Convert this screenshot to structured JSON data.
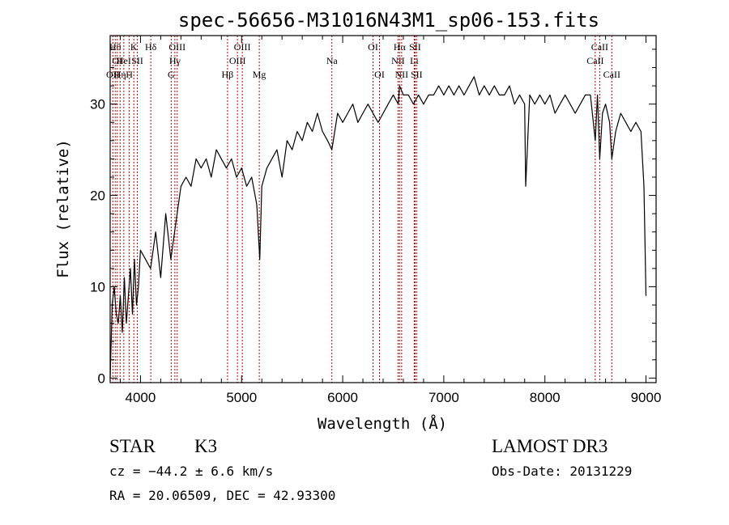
{
  "chart_data": {
    "type": "line",
    "title": "spec-56656-M31016N43M1_sp06-153.fits",
    "xlabel": "Wavelength (Å)",
    "ylabel": "Flux (relative)",
    "xlim": [
      3700,
      9100
    ],
    "ylim": [
      -0.5,
      37.5
    ],
    "xticks": [
      4000,
      5000,
      6000,
      7000,
      8000,
      9000
    ],
    "yticks": [
      0,
      10,
      20,
      30
    ],
    "series": [
      {
        "name": "flux",
        "x": [
          3700,
          3720,
          3740,
          3760,
          3780,
          3800,
          3820,
          3840,
          3860,
          3880,
          3900,
          3920,
          3940,
          3960,
          3980,
          4000,
          4050,
          4100,
          4150,
          4200,
          4250,
          4300,
          4350,
          4400,
          4450,
          4500,
          4550,
          4600,
          4650,
          4700,
          4750,
          4800,
          4850,
          4900,
          4950,
          5000,
          5050,
          5100,
          5150,
          5180,
          5200,
          5250,
          5300,
          5350,
          5400,
          5450,
          5500,
          5550,
          5600,
          5650,
          5700,
          5750,
          5800,
          5850,
          5893,
          5950,
          6000,
          6050,
          6100,
          6150,
          6200,
          6250,
          6300,
          6350,
          6400,
          6450,
          6500,
          6550,
          6563,
          6600,
          6650,
          6700,
          6750,
          6800,
          6850,
          6900,
          6950,
          7000,
          7050,
          7100,
          7150,
          7200,
          7250,
          7300,
          7350,
          7400,
          7450,
          7500,
          7550,
          7600,
          7650,
          7700,
          7750,
          7800,
          7810,
          7850,
          7900,
          7950,
          8000,
          8050,
          8100,
          8150,
          8200,
          8250,
          8300,
          8350,
          8400,
          8450,
          8498,
          8520,
          8542,
          8570,
          8600,
          8640,
          8662,
          8700,
          8750,
          8800,
          8850,
          8900,
          8950,
          8980,
          9000
        ],
        "values": [
          0,
          8,
          10,
          7,
          6,
          9,
          5,
          11,
          6,
          9,
          12,
          7,
          13,
          8,
          10,
          14,
          13,
          12,
          16,
          11,
          18,
          13,
          17,
          21,
          22,
          21,
          24,
          23,
          24,
          22,
          25,
          24,
          23,
          24,
          22,
          23,
          21,
          22,
          19,
          13,
          21,
          23,
          24,
          25,
          22,
          26,
          25,
          27,
          26,
          28,
          27,
          29,
          27,
          26,
          25,
          29,
          28,
          29,
          30,
          28,
          29,
          30,
          29,
          28,
          29,
          30,
          31,
          30,
          32,
          31,
          31,
          30,
          31,
          30,
          31,
          31,
          32,
          31,
          32,
          31,
          32,
          31,
          32,
          33,
          31,
          32,
          31,
          32,
          31,
          31,
          32,
          30,
          31,
          30,
          21,
          31,
          30,
          31,
          30,
          31,
          29,
          30,
          31,
          30,
          29,
          30,
          31,
          31,
          26,
          31,
          24,
          29,
          30,
          28,
          24,
          27,
          29,
          28,
          27,
          28,
          27,
          21,
          9
        ]
      }
    ],
    "lines": [
      {
        "wave": 3727,
        "label": "OII",
        "row": 3
      },
      {
        "wave": 3750,
        "label": "Hθ",
        "row": 1
      },
      {
        "wave": 3770,
        "label": "OI",
        "row": 2
      },
      {
        "wave": 3798,
        "label": "Hη",
        "row": 3
      },
      {
        "wave": 3835,
        "label": "HeI",
        "row": 2
      },
      {
        "wave": 3889,
        "label": "H",
        "row": 3
      },
      {
        "wave": 3934,
        "label": "K",
        "row": 1
      },
      {
        "wave": 3969,
        "label": "SII",
        "row": 2
      },
      {
        "wave": 4102,
        "label": "Hδ",
        "row": 1
      },
      {
        "wave": 4304,
        "label": "G",
        "row": 3
      },
      {
        "wave": 4340,
        "label": "Hγ",
        "row": 2
      },
      {
        "wave": 4363,
        "label": "OIII",
        "row": 1
      },
      {
        "wave": 4861,
        "label": "Hβ",
        "row": 3
      },
      {
        "wave": 4959,
        "label": "OIII",
        "row": 2
      },
      {
        "wave": 5007,
        "label": "OIII",
        "row": 1
      },
      {
        "wave": 5175,
        "label": "Mg",
        "row": 3
      },
      {
        "wave": 5893,
        "label": "Na",
        "row": 2
      },
      {
        "wave": 6300,
        "label": "OI",
        "row": 1
      },
      {
        "wave": 6364,
        "label": "OI",
        "row": 3
      },
      {
        "wave": 6548,
        "label": "NII",
        "row": 2
      },
      {
        "wave": 6563,
        "label": "Hα",
        "row": 1
      },
      {
        "wave": 6583,
        "label": "NII",
        "row": 3
      },
      {
        "wave": 6708,
        "label": "Li",
        "row": 2
      },
      {
        "wave": 6716,
        "label": "SII",
        "row": 1
      },
      {
        "wave": 6731,
        "label": "SII",
        "row": 3
      },
      {
        "wave": 8498,
        "label": "CaII",
        "row": 2
      },
      {
        "wave": 8542,
        "label": "CaII",
        "row": 1
      },
      {
        "wave": 8662,
        "label": "CaII",
        "row": 3
      }
    ]
  },
  "info": {
    "object_class": "STAR",
    "subclass": "K3",
    "survey": "LAMOST DR3",
    "cz": "cz = −44.2 ± 6.6 km/s",
    "obs_date": "Obs-Date: 20131229",
    "coords": "RA =  20.06509, DEC =  42.93300"
  }
}
